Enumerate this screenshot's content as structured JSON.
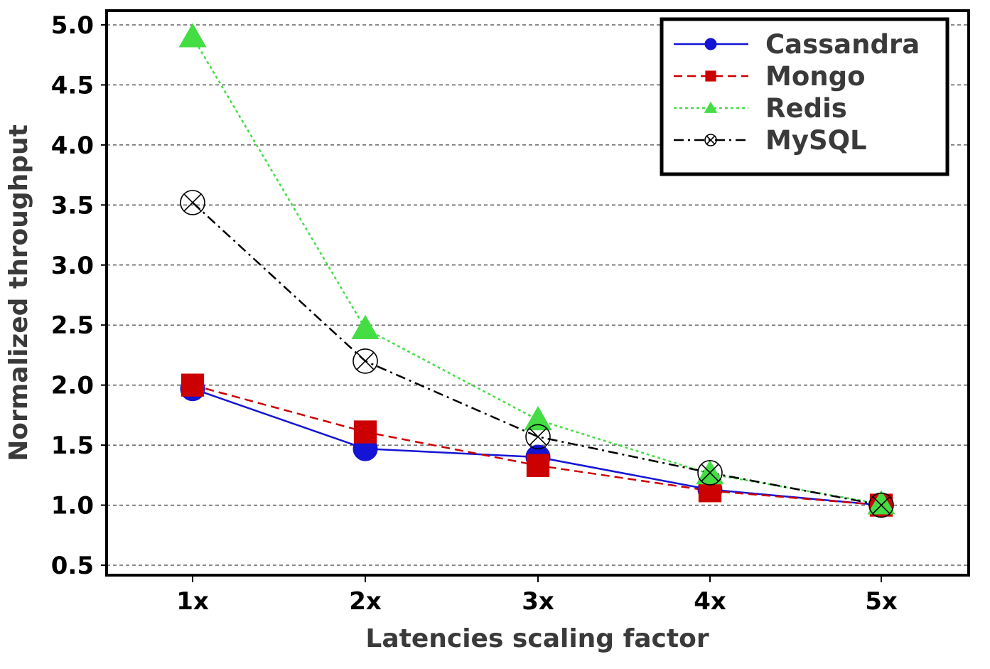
{
  "chart_data": {
    "type": "line",
    "title": "",
    "xlabel": "Latencies scaling factor",
    "ylabel": "Normalized throughput",
    "categories": [
      "1x",
      "2x",
      "3x",
      "4x",
      "5x"
    ],
    "ylim": [
      0.5,
      5.0
    ],
    "yticks": [
      "0.5",
      "1.0",
      "1.5",
      "2.0",
      "2.5",
      "3.0",
      "3.5",
      "4.0",
      "4.5",
      "5.0"
    ],
    "grid": true,
    "legend_position": "top-right",
    "series": [
      {
        "name": "Cassandra",
        "values": [
          1.97,
          1.47,
          1.4,
          1.13,
          1.0
        ],
        "color": "#1414d4",
        "dash": "solid",
        "marker": "circle"
      },
      {
        "name": "Mongo",
        "values": [
          2.0,
          1.61,
          1.33,
          1.12,
          1.0
        ],
        "color": "#cc0000",
        "dash": "dashed",
        "marker": "square"
      },
      {
        "name": "Redis",
        "values": [
          4.9,
          2.47,
          1.71,
          1.26,
          1.01
        ],
        "color": "#44dd44",
        "dash": "dotted",
        "marker": "triangle"
      },
      {
        "name": "MySQL",
        "values": [
          3.52,
          2.2,
          1.57,
          1.27,
          1.0
        ],
        "color": "#000000",
        "dash": "dashdot",
        "marker": "circle-x"
      }
    ]
  }
}
